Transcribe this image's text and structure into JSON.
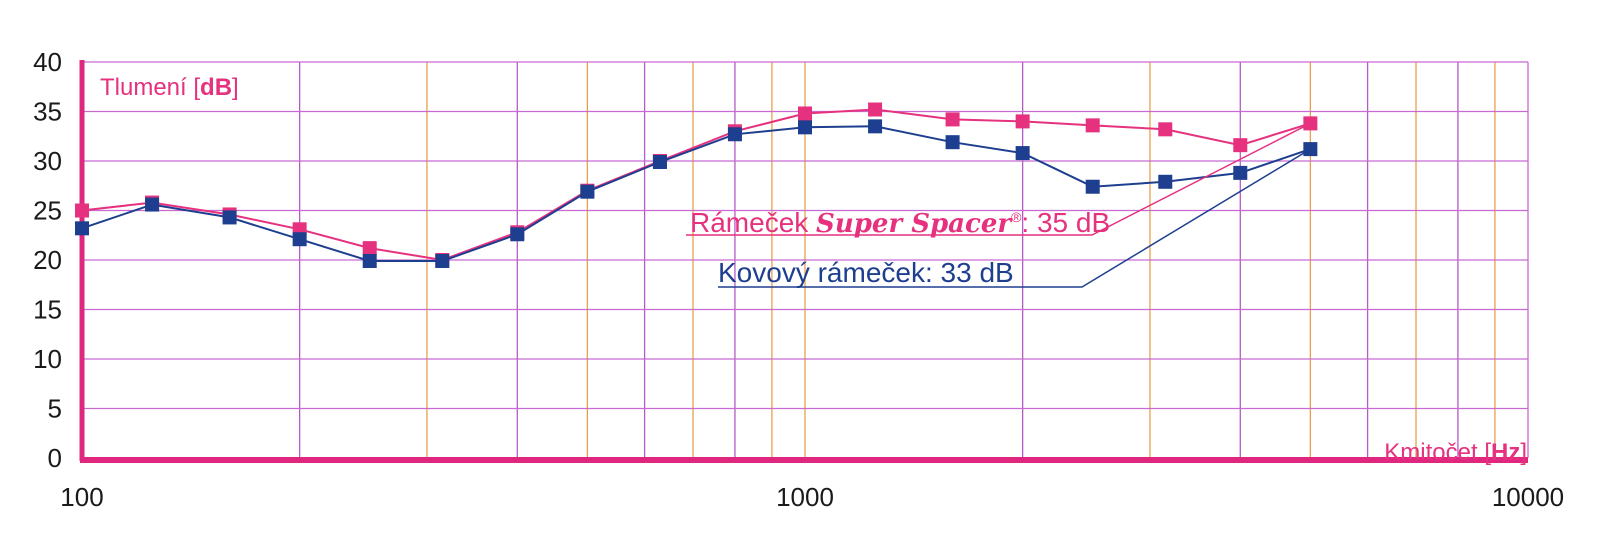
{
  "chart_data": {
    "type": "line",
    "x_scale": "log",
    "xlim": [
      100,
      10000
    ],
    "ylim": [
      0,
      40
    ],
    "grid": true,
    "y_ticks": [
      "0",
      "5",
      "10",
      "15",
      "20",
      "25",
      "30",
      "35",
      "40"
    ],
    "x_ticks": [
      "100",
      "1000",
      "10000"
    ],
    "ylabel": {
      "prefix": "Tlumení [",
      "unit": "dB",
      "suffix": "]"
    },
    "xlabel": {
      "prefix": "Kmitočet [",
      "unit": "Hz",
      "suffix": "]"
    },
    "x": [
      100,
      125,
      160,
      200,
      250,
      315,
      400,
      500,
      630,
      800,
      1000,
      1250,
      1600,
      2000,
      2500,
      3150,
      4000,
      5000
    ],
    "series": [
      {
        "key": "pink",
        "color": "#e6317f",
        "values": [
          25,
          25.8,
          24.6,
          23.1,
          21.2,
          20,
          22.8,
          27,
          30,
          33,
          34.8,
          35.2,
          34.2,
          34,
          33.6,
          33.2,
          31.6,
          33.8
        ],
        "label_prefix": "Rámeček ",
        "label_brand": "Super Spacer",
        "label_mark": "®",
        "label_suffix": ": 35 dB"
      },
      {
        "key": "blue",
        "color": "#1e3f8f",
        "values": [
          23.2,
          25.6,
          24.3,
          22.1,
          19.9,
          19.9,
          22.6,
          26.9,
          29.9,
          32.7,
          33.4,
          33.5,
          31.9,
          30.8,
          27.4,
          27.9,
          28.8,
          31.2
        ],
        "label_prefix": "Kovový rámeček: 33 dB"
      }
    ]
  }
}
